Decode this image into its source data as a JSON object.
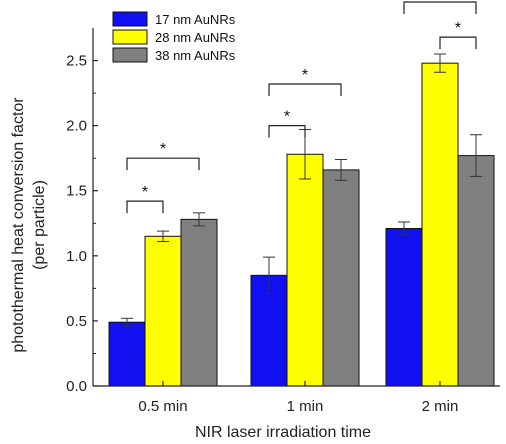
{
  "chart_data": {
    "type": "bar",
    "categories": [
      "0.5 min",
      "1 min",
      "2 min"
    ],
    "series": [
      {
        "name": "17 nm AuNRs",
        "color": "#1010f0",
        "values": [
          0.49,
          0.85,
          1.21
        ],
        "errors": [
          0.03,
          0.14,
          0.05
        ]
      },
      {
        "name": "28 nm AuNRs",
        "color": "#ffff00",
        "values": [
          1.15,
          1.78,
          2.48
        ],
        "errors": [
          0.04,
          0.19,
          0.07
        ]
      },
      {
        "name": "38 nm AuNRs",
        "color": "#808080",
        "values": [
          1.28,
          1.66,
          1.77
        ],
        "errors": [
          0.05,
          0.08,
          0.16
        ]
      }
    ],
    "xlabel": "NIR laser irradiation time",
    "ylabel_lines": [
      "photothermal heat conversion factor",
      "(per particle)"
    ],
    "ylim": [
      0,
      2.75
    ],
    "yticks": [
      "0.0",
      "0.5",
      "1.0",
      "1.5",
      "2.0",
      "2.5"
    ],
    "legend_position": "top-left",
    "significance": [
      {
        "category": 0,
        "from": 0,
        "to": 1,
        "bracket_y": 1.42,
        "label": "*"
      },
      {
        "category": 0,
        "from": 0,
        "to": 2,
        "bracket_y": 1.75,
        "label": "*"
      },
      {
        "category": 1,
        "from": 0,
        "to": 1,
        "bracket_y": 2.0,
        "label": "*"
      },
      {
        "category": 1,
        "from": 0,
        "to": 2,
        "bracket_y": 2.32,
        "label": "*"
      },
      {
        "category": 2,
        "from": 1,
        "to": 2,
        "bracket_y": 2.68,
        "label": "*"
      },
      {
        "category": 2,
        "from": 0,
        "to": 2,
        "bracket_y": 2.95,
        "label": "*"
      }
    ]
  }
}
